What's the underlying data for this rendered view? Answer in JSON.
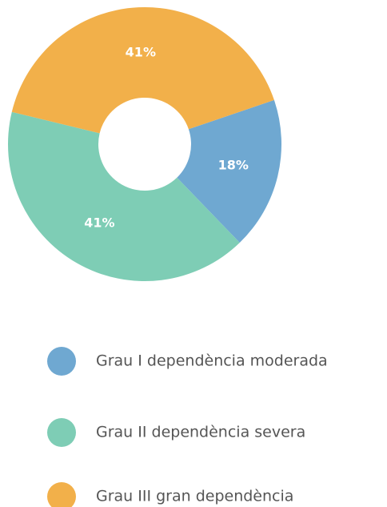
{
  "chart_data": {
    "type": "donut",
    "categories": [
      "Grau I dependència moderada",
      "Grau II dependència severa",
      "Grau III gran dependència"
    ],
    "values": [
      18,
      41,
      41
    ],
    "value_labels": [
      "18%",
      "41%",
      "41%"
    ],
    "colors": [
      "#6fa8d1",
      "#7ecdb5",
      "#f2b04a"
    ],
    "legend": "bottom"
  }
}
